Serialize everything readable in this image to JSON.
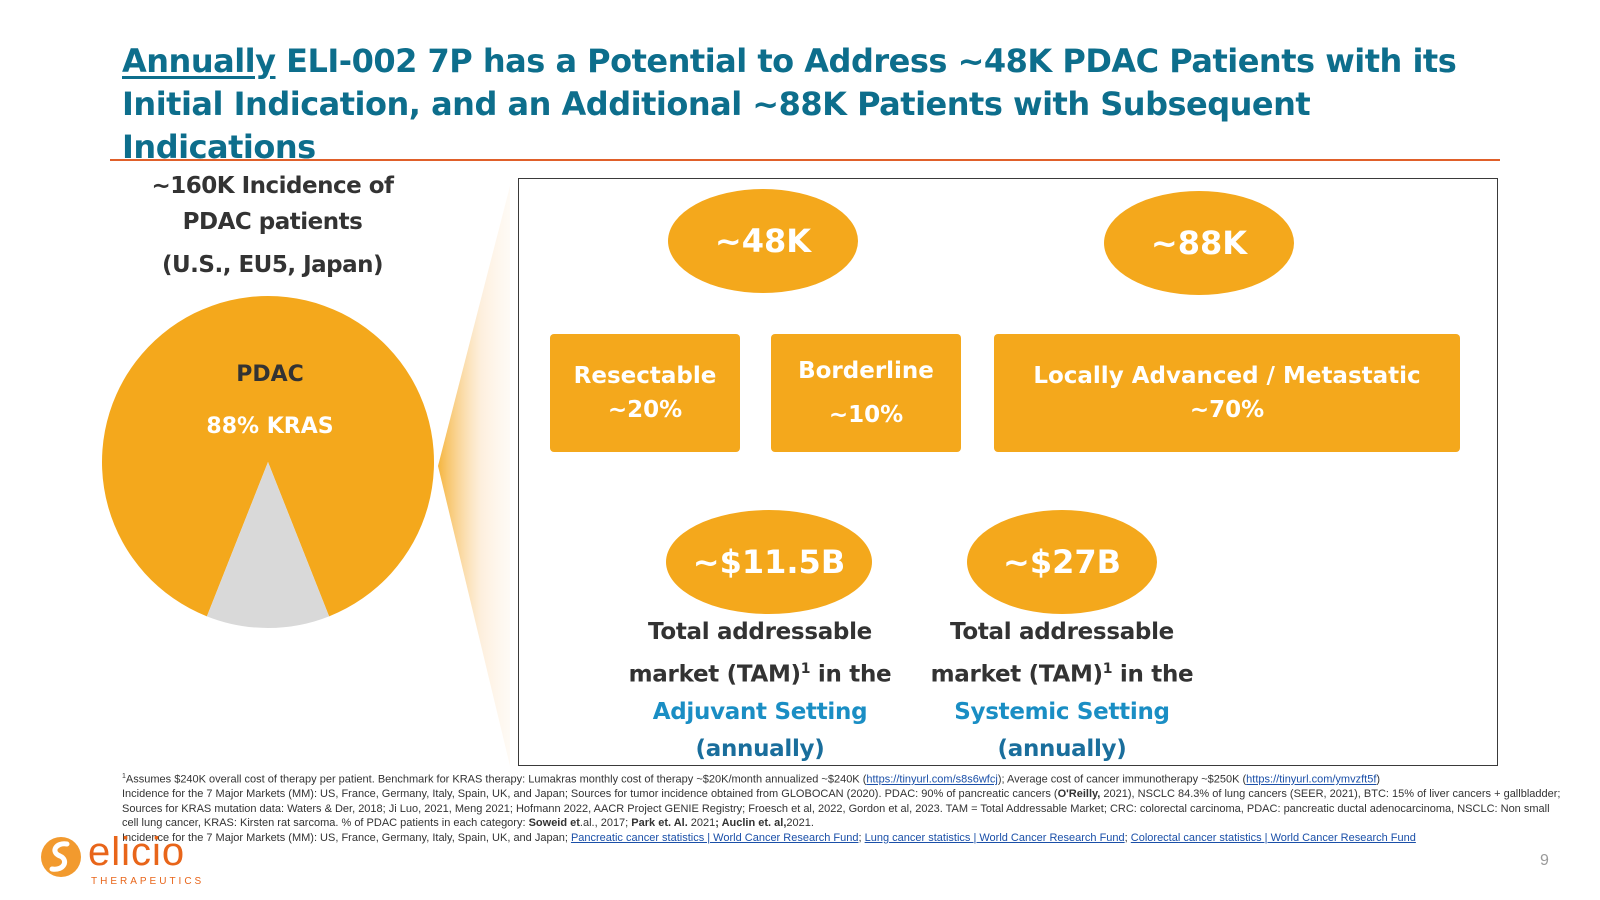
{
  "title": {
    "underlined": "Annually",
    "rest": " ELI-002 7P has a Potential to Address ~48K PDAC Patients with its Initial Indication, and an Additional ~88K Patients with Subsequent Indications"
  },
  "incidence": {
    "line1": "~160K Incidence of",
    "line2": "PDAC patients",
    "line3": "(U.S., EU5, Japan)"
  },
  "pie": {
    "label": "PDAC",
    "kras_label": "88% KRAS",
    "kras_fraction": 0.88,
    "colors": {
      "kras": "#f4a81c",
      "other": "#d9d9d9"
    }
  },
  "segments": {
    "initial_total": "~48K",
    "subsequent_total": "~88K",
    "resectable": {
      "name": "Resectable",
      "pct": "~20%"
    },
    "borderline": {
      "name": "Borderline",
      "pct": "~10%"
    },
    "advanced": {
      "name": "Locally Advanced / Metastatic",
      "pct": "~70%"
    }
  },
  "tam": {
    "adjuvant": {
      "value": "~$11.5B",
      "line1": "Total addressable",
      "line2a": "market (TAM)",
      "sup": "1",
      "line2b": " in the",
      "setting": "Adjuvant Setting",
      "annual": "(annually)"
    },
    "systemic": {
      "value": "~$27B",
      "line1": "Total addressable",
      "line2a": "market (TAM)",
      "sup": "1",
      "line2b": " in the",
      "setting": "Systemic Setting",
      "annual": "(annually)"
    }
  },
  "footnotes": {
    "fn1_sup": "1",
    "fn1_a": "Assumes $240K overall cost of therapy per patient. Benchmark for KRAS therapy: Lumakras monthly cost of therapy ~$20K/month annualized ~$240K (",
    "fn1_link1": "https://tinyurl.com/s8s6wfcj",
    "fn1_b": "); Average cost of cancer immunotherapy ~$250K (",
    "fn1_link2": "https://tinyurl.com/ymvzft5f",
    "fn1_c": ")",
    "fn2_a": "Incidence for the 7 Major Markets (MM): US, France, Germany, Italy, Spain, UK, and Japan; Sources for tumor incidence obtained from GLOBOCAN (2020). PDAC: 90% of pancreatic cancers (",
    "fn2_bold1": "O'Reilly,",
    "fn2_b": " 2021), NSCLC 84.3% of lung cancers (SEER, 2021), BTC: 15% of liver cancers + gallbladder; Sources for KRAS mutation data: Waters & Der, 2018; Ji Luo, 2021, Meng 2021; Hofmann 2022, AACR Project GENIE Registry; Froesch et al, 2022, Gordon et al, 2023. TAM = Total Addressable Market; CRC: colorectal carcinoma, PDAC: pancreatic ductal adenocarcinoma, NSCLC: Non small cell lung cancer, KRAS: Kirsten rat sarcoma. % of PDAC patients in each category: ",
    "fn2_bold2": "Soweid et",
    "fn2_c": ".al., 2017; ",
    "fn2_bold3": "Park et. Al.",
    "fn2_d": " 2021",
    "fn2_bold4": "; Auclin et. al,",
    "fn2_e": "2021.",
    "fn3_a": "Incidence for the 7 Major Markets (MM): US, France, Germany, Italy, Spain, UK, and Japan; ",
    "fn3_link1": "Pancreatic cancer statistics | World Cancer Research Fund",
    "fn3_sep1": "; ",
    "fn3_link2": "Lung cancer statistics | World Cancer Research Fund",
    "fn3_sep2": "; ",
    "fn3_link3": "Colorectal cancer statistics | World Cancer Research Fund"
  },
  "logo": {
    "word": "elicio",
    "sub": "THERAPEUTICS"
  },
  "page_number": "9",
  "colors": {
    "title": "#0d6e8c",
    "accent": "#f4a81c",
    "rule": "#e0602a",
    "setting": "#1a8ec4",
    "logo": "#e8651a"
  }
}
